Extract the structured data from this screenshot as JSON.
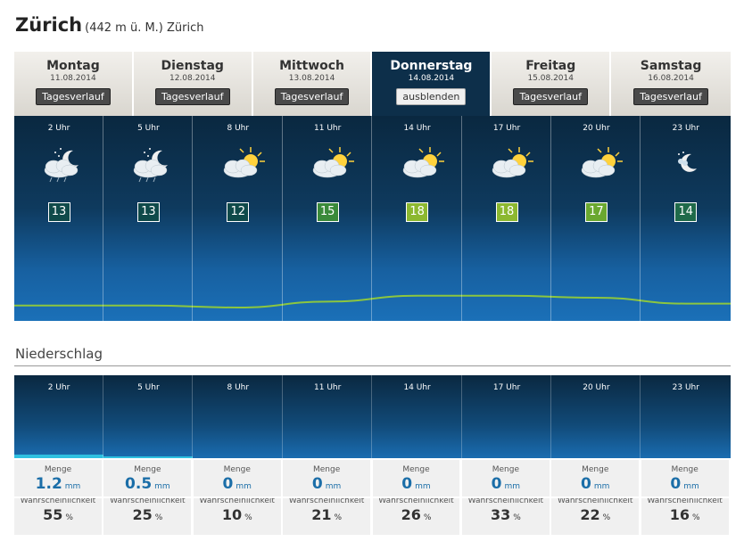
{
  "header": {
    "city": "Zürich",
    "subtitle": "(442 m ü. M.) Zürich"
  },
  "days": [
    {
      "name": "Montag",
      "date": "11.08.2014",
      "button": "Tagesverlauf",
      "active": false
    },
    {
      "name": "Dienstag",
      "date": "12.08.2014",
      "button": "Tagesverlauf",
      "active": false
    },
    {
      "name": "Mittwoch",
      "date": "13.08.2014",
      "button": "Tagesverlauf",
      "active": false
    },
    {
      "name": "Donnerstag",
      "date": "14.08.2014",
      "button": "ausblenden",
      "active": true
    },
    {
      "name": "Freitag",
      "date": "15.08.2014",
      "button": "Tagesverlauf",
      "active": false
    },
    {
      "name": "Samstag",
      "date": "16.08.2014",
      "button": "Tagesverlauf",
      "active": false
    }
  ],
  "forecast": {
    "slots": [
      {
        "time": "2 Uhr",
        "icon": "night-cloud-rain-icon",
        "temp": "13",
        "temp_color": "#0f4a4a"
      },
      {
        "time": "5 Uhr",
        "icon": "night-cloud-rain-icon",
        "temp": "13",
        "temp_color": "#0f4a4a"
      },
      {
        "time": "8 Uhr",
        "icon": "sun-cloud-icon",
        "temp": "12",
        "temp_color": "#0f4a4a"
      },
      {
        "time": "11 Uhr",
        "icon": "sun-cloud-icon",
        "temp": "15",
        "temp_color": "#3a8a3a"
      },
      {
        "time": "14 Uhr",
        "icon": "sun-cloud-icon",
        "temp": "18",
        "temp_color": "#8cb830"
      },
      {
        "time": "17 Uhr",
        "icon": "sun-cloud-icon",
        "temp": "18",
        "temp_color": "#8cb830"
      },
      {
        "time": "20 Uhr",
        "icon": "sun-cloud-icon",
        "temp": "17",
        "temp_color": "#6aa830"
      },
      {
        "time": "23 Uhr",
        "icon": "moon-icon",
        "temp": "14",
        "temp_color": "#1f6a4a"
      }
    ]
  },
  "precipitation": {
    "title": "Niederschlag",
    "amount_label": "Menge",
    "amount_unit": "mm",
    "prob_label": "Wahrscheinlichkeit",
    "prob_unit": "%",
    "slots": [
      {
        "time": "2 Uhr",
        "amount": "1.2",
        "prob": "55",
        "amount_value": 1.2
      },
      {
        "time": "5 Uhr",
        "amount": "0.5",
        "prob": "25",
        "amount_value": 0.5
      },
      {
        "time": "8 Uhr",
        "amount": "0",
        "prob": "10",
        "amount_value": 0
      },
      {
        "time": "11 Uhr",
        "amount": "0",
        "prob": "21",
        "amount_value": 0
      },
      {
        "time": "14 Uhr",
        "amount": "0",
        "prob": "26",
        "amount_value": 0
      },
      {
        "time": "17 Uhr",
        "amount": "0",
        "prob": "33",
        "amount_value": 0
      },
      {
        "time": "20 Uhr",
        "amount": "0",
        "prob": "22",
        "amount_value": 0
      },
      {
        "time": "23 Uhr",
        "amount": "0",
        "prob": "16",
        "amount_value": 0
      }
    ]
  },
  "colors": {
    "active_tab": "#0d2f4a",
    "precip_bar": "#2ec0e0",
    "curve": "#8cc63f",
    "value_blue": "#1b6ea8"
  }
}
